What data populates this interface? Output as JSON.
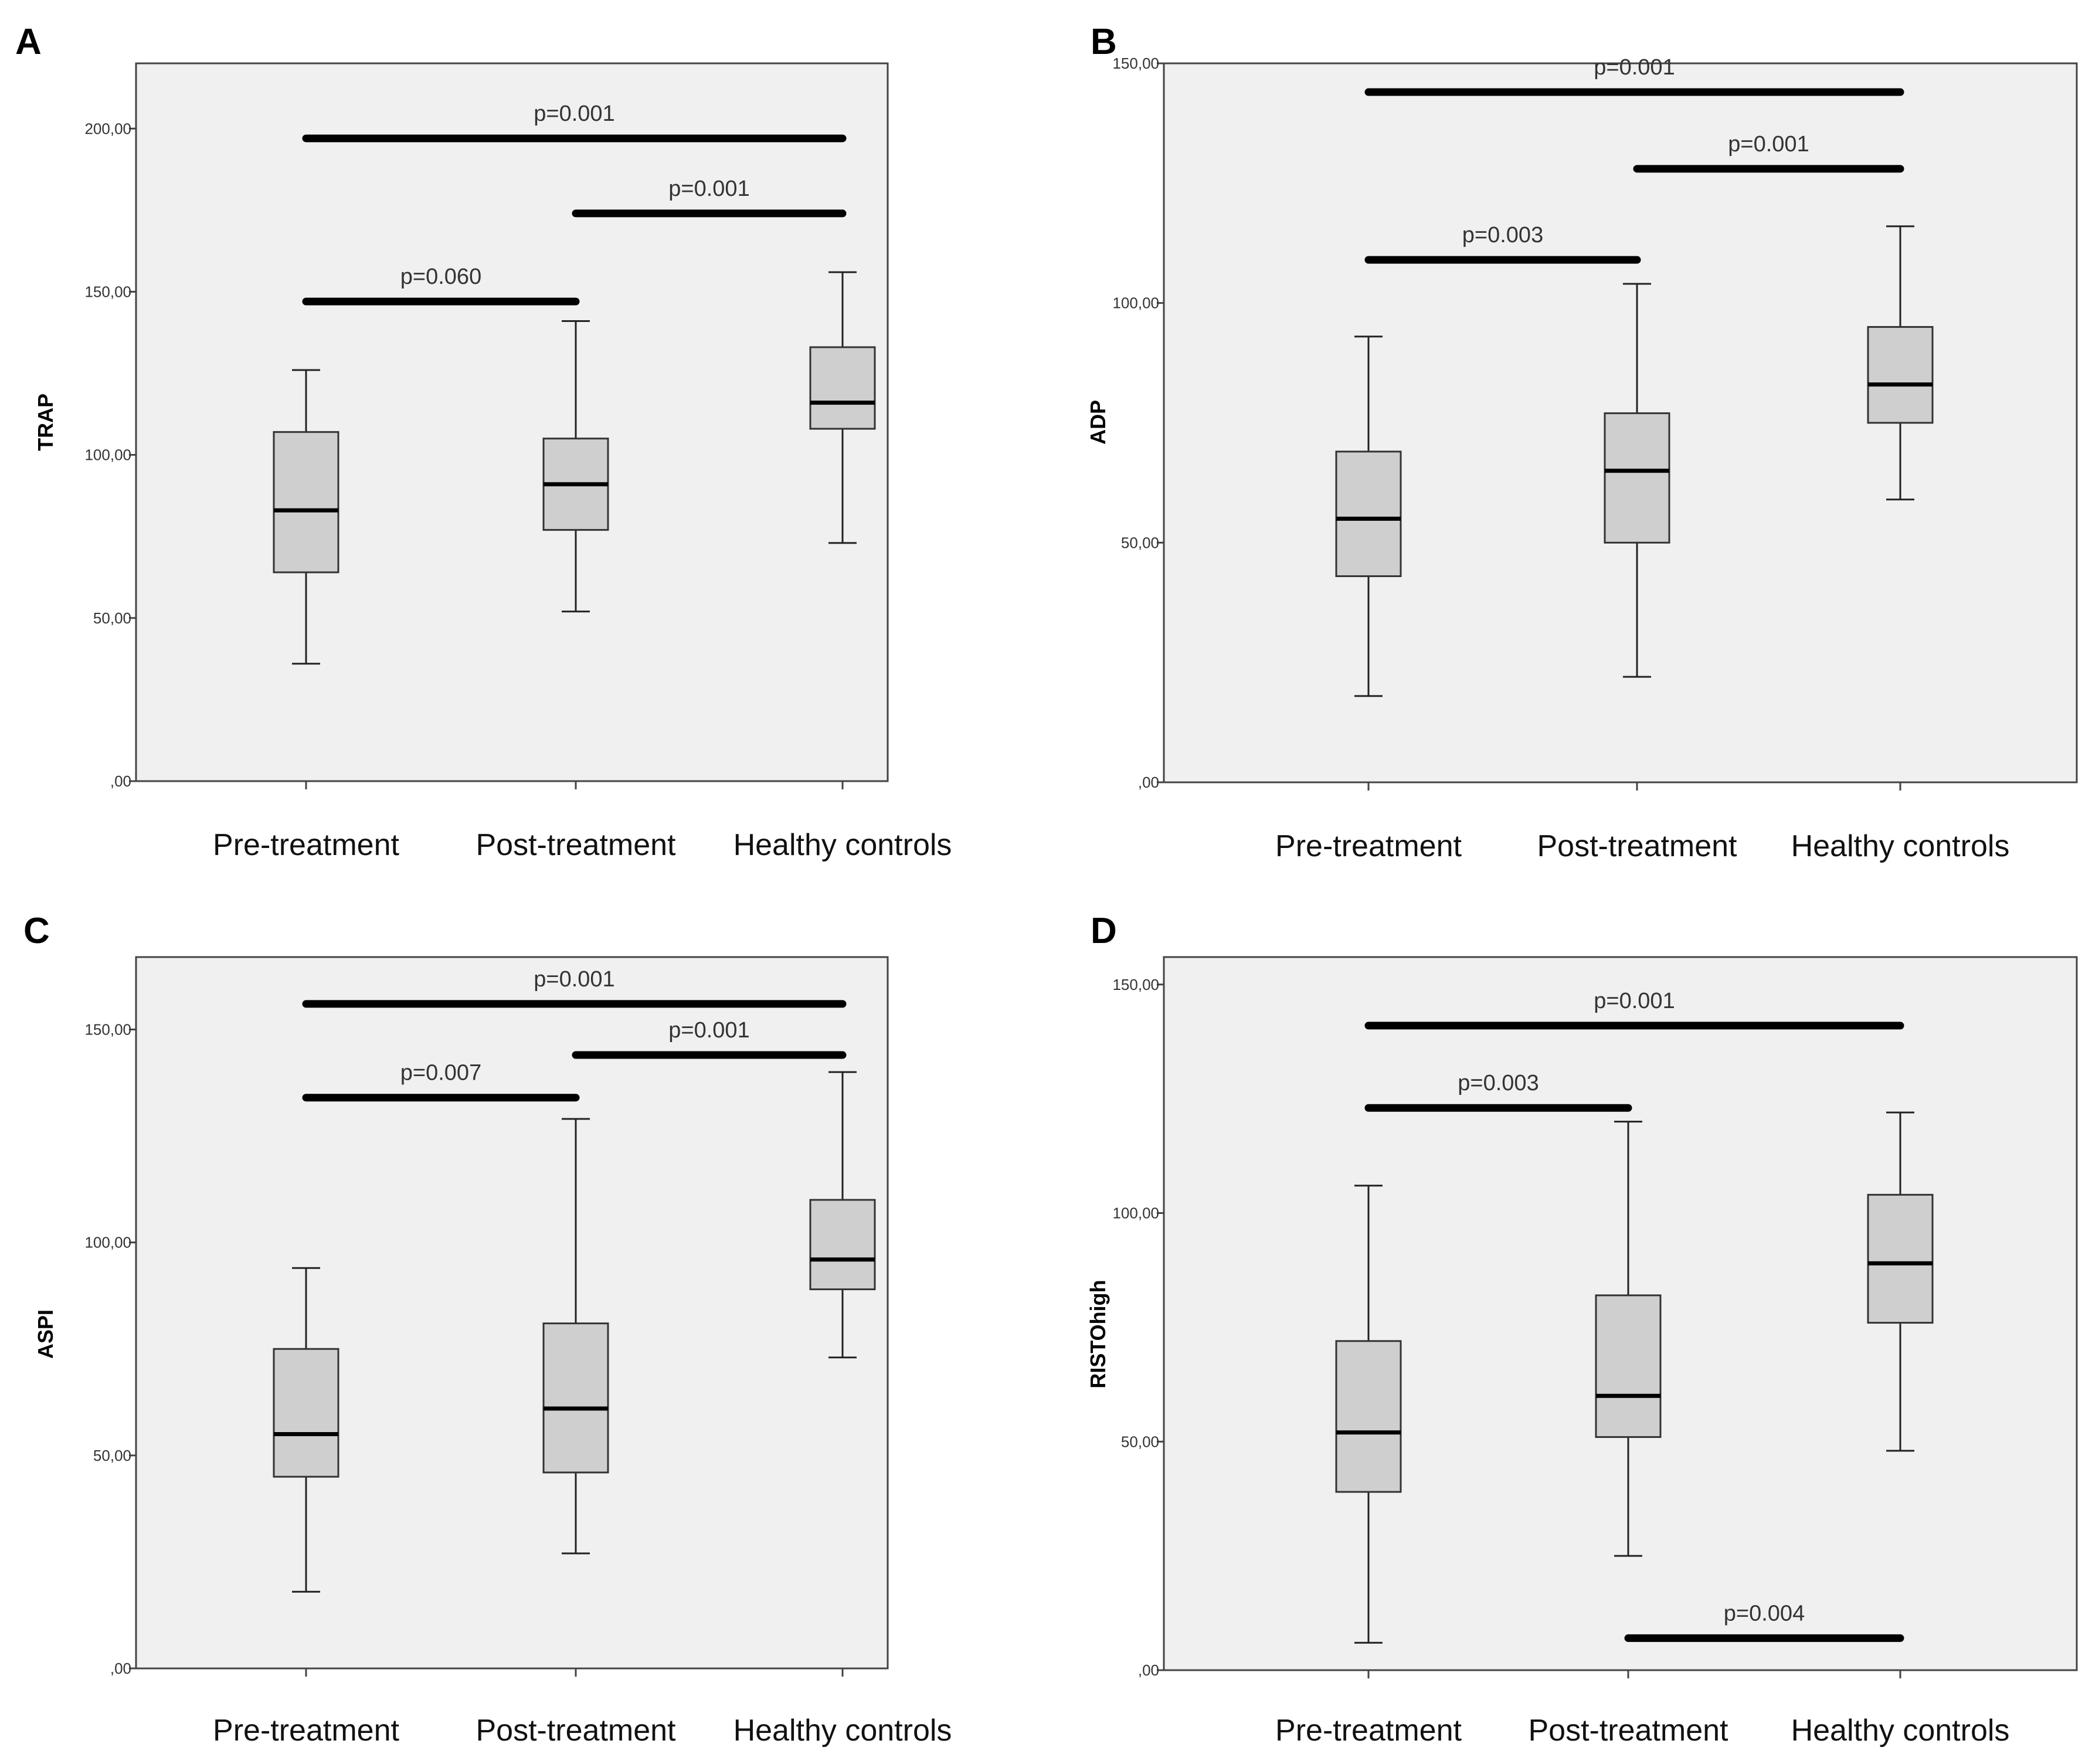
{
  "chart_data": [
    {
      "type": "box",
      "panel": "A",
      "ylabel": "TRAP",
      "ylim": [
        0,
        220
      ],
      "yticks": [
        0,
        50,
        100,
        150,
        200
      ],
      "yticklabels": [
        ",00",
        "50,00",
        "100,00",
        "150,00",
        "200,00"
      ],
      "categories": [
        "Pre-treatment",
        "Post-treatment",
        "Healthy controls"
      ],
      "boxes": [
        {
          "min": 36,
          "q1": 64,
          "median": 83,
          "q3": 107,
          "max": 126
        },
        {
          "min": 52,
          "q1": 77,
          "median": 91,
          "q3": 105,
          "max": 141
        },
        {
          "min": 73,
          "q1": 108,
          "median": 116,
          "q3": 133,
          "max": 156
        }
      ],
      "comparisons": [
        {
          "from": 0,
          "to": 2,
          "y": 197,
          "label": "p=0.001"
        },
        {
          "from": 1,
          "to": 2,
          "y": 174,
          "label": "p=0.001"
        },
        {
          "from": 0,
          "to": 1,
          "y": 147,
          "label": "p=0.060"
        }
      ]
    },
    {
      "type": "box",
      "panel": "B",
      "ylabel": "ADP",
      "ylim": [
        0,
        150
      ],
      "yticks": [
        0,
        50,
        100,
        150
      ],
      "yticklabels": [
        ",00",
        "50,00",
        "100,00",
        "150,00"
      ],
      "categories": [
        "Pre-treatment",
        "Post-treatment",
        "Healthy controls"
      ],
      "boxes": [
        {
          "min": 18,
          "q1": 43,
          "median": 55,
          "q3": 69,
          "max": 93
        },
        {
          "min": 22,
          "q1": 50,
          "median": 65,
          "q3": 77,
          "max": 104
        },
        {
          "min": 59,
          "q1": 75,
          "median": 83,
          "q3": 95,
          "max": 116
        }
      ],
      "comparisons": [
        {
          "from": 0,
          "to": 2,
          "y": 144,
          "label": "p=0.001"
        },
        {
          "from": 1,
          "to": 2,
          "y": 128,
          "label": "p=0.001"
        },
        {
          "from": 0,
          "to": 1,
          "y": 109,
          "label": "p=0.003"
        }
      ]
    },
    {
      "type": "box",
      "panel": "C",
      "ylabel": "ASPI",
      "ylim": [
        0,
        167
      ],
      "yticks": [
        0,
        50,
        100,
        150
      ],
      "yticklabels": [
        ",00",
        "50,00",
        "100,00",
        "150,00"
      ],
      "categories": [
        "Pre-treatment",
        "Post-treatment",
        "Healthy controls"
      ],
      "boxes": [
        {
          "min": 18,
          "q1": 45,
          "median": 55,
          "q3": 75,
          "max": 94
        },
        {
          "min": 27,
          "q1": 46,
          "median": 61,
          "q3": 81,
          "max": 129
        },
        {
          "min": 73,
          "q1": 89,
          "median": 96,
          "q3": 110,
          "max": 140
        }
      ],
      "comparisons": [
        {
          "from": 0,
          "to": 2,
          "y": 156,
          "label": "p=0.001"
        },
        {
          "from": 1,
          "to": 2,
          "y": 144,
          "label": "p=0.001"
        },
        {
          "from": 0,
          "to": 1,
          "y": 134,
          "label": "p=0.007"
        }
      ]
    },
    {
      "type": "box",
      "panel": "D",
      "ylabel": "RISTOhigh",
      "ylim": [
        0,
        156
      ],
      "yticks": [
        0,
        50,
        100,
        150
      ],
      "yticklabels": [
        ",00",
        "50,00",
        "100,00",
        "150,00"
      ],
      "categories": [
        "Pre-treatment",
        "Post-treatment",
        "Healthy controls"
      ],
      "boxes": [
        {
          "min": 6,
          "q1": 39,
          "median": 52,
          "q3": 72,
          "max": 106
        },
        {
          "min": 25,
          "q1": 51,
          "median": 60,
          "q3": 82,
          "max": 120
        },
        {
          "min": 48,
          "q1": 76,
          "median": 89,
          "q3": 104,
          "max": 122
        }
      ],
      "comparisons": [
        {
          "from": 0,
          "to": 2,
          "y": 141,
          "label": "p=0.001"
        },
        {
          "from": 0,
          "to": 1,
          "y": 123,
          "label": "p=0.003"
        },
        {
          "from": 1,
          "to": 2,
          "y": 7,
          "label": "p=0.004"
        }
      ]
    }
  ]
}
